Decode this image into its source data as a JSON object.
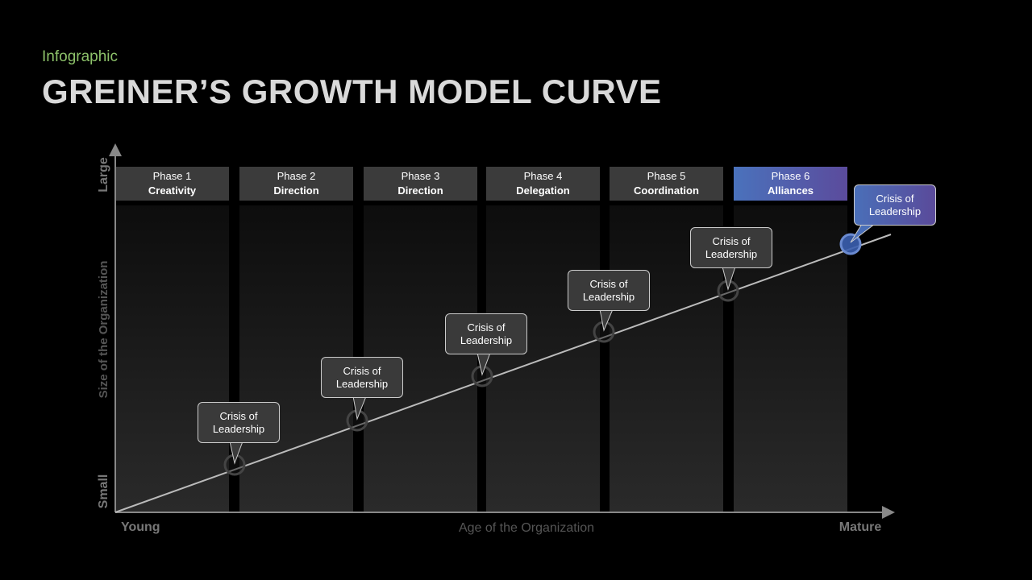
{
  "header": {
    "subtitle": "Infographic",
    "title": "GREINER’S GROWTH MODEL CURVE"
  },
  "axes": {
    "y_top": "Large",
    "y_label": "Size of the Organization",
    "y_bottom": "Small",
    "x_left": "Young",
    "x_label": "Age of the Organization",
    "x_right": "Mature"
  },
  "phases": [
    {
      "label": "Phase 1",
      "name": "Creativity"
    },
    {
      "label": "Phase 2",
      "name": "Direction"
    },
    {
      "label": "Phase 3",
      "name": "Direction"
    },
    {
      "label": "Phase 4",
      "name": "Delegation"
    },
    {
      "label": "Phase 5",
      "name": "Coordination"
    },
    {
      "label": "Phase 6",
      "name": "Alliances"
    }
  ],
  "callouts": [
    "Crisis of Leadership",
    "Crisis of Leadership",
    "Crisis of Leadership",
    "Crisis of Leadership",
    "Crisis of Leadership",
    "Crisis of Leadership"
  ]
}
